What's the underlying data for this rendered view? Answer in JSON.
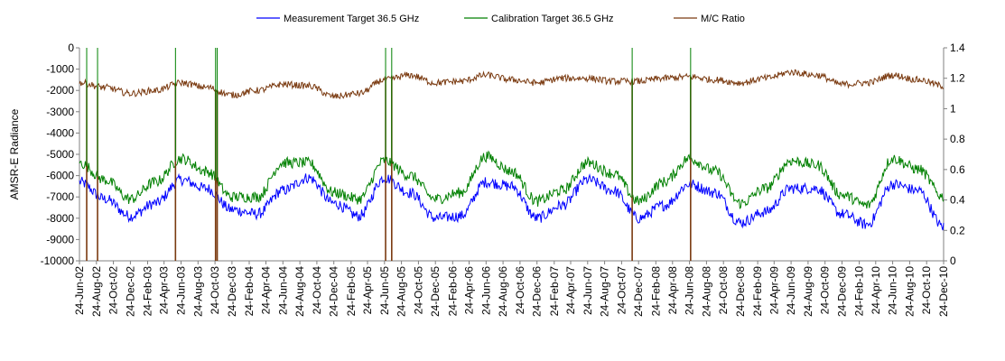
{
  "chart_data": {
    "type": "line",
    "title": "",
    "xlabel": "",
    "ylabel": "AMSR-E Radiance",
    "y2label": "",
    "ylim": [
      -10000,
      0
    ],
    "y2lim": [
      0,
      1.4
    ],
    "y_ticks": [
      "0",
      "-1000",
      "-2000",
      "-3000",
      "-4000",
      "-5000",
      "-6000",
      "-7000",
      "-8000",
      "-9000",
      "-10000"
    ],
    "y2_ticks": [
      "1.4",
      "1.2",
      "1",
      "0.8",
      "0.6",
      "0.4",
      "0.2",
      "0"
    ],
    "grid": false,
    "legend_position": "top-center",
    "x_ticks": [
      "24-Jun-02",
      "24-Aug-02",
      "24-Oct-02",
      "24-Dec-02",
      "24-Feb-03",
      "24-Apr-03",
      "24-Jun-03",
      "24-Aug-03",
      "24-Oct-03",
      "24-Dec-03",
      "24-Feb-04",
      "24-Apr-04",
      "24-Jun-04",
      "24-Aug-04",
      "24-Oct-04",
      "24-Dec-04",
      "24-Feb-05",
      "24-Apr-05",
      "24-Jun-05",
      "24-Aug-05",
      "24-Oct-05",
      "24-Dec-05",
      "24-Feb-06",
      "24-Apr-06",
      "24-Jun-06",
      "24-Aug-06",
      "24-Oct-06",
      "24-Dec-06",
      "24-Feb-07",
      "24-Apr-07",
      "24-Jun-07",
      "24-Aug-07",
      "24-Oct-07",
      "24-Dec-07",
      "24-Feb-08",
      "24-Apr-08",
      "24-Jun-08",
      "24-Aug-08",
      "24-Oct-08",
      "24-Dec-08",
      "24-Feb-09",
      "24-Apr-09",
      "24-Jun-09",
      "24-Aug-09",
      "24-Oct-09",
      "24-Dec-09",
      "24-Feb-10",
      "24-Apr-10",
      "24-Jun-10",
      "24-Aug-10",
      "24-Oct-10",
      "24-Dec-10"
    ],
    "x_start": "2002-06-24",
    "x_end": "2010-12-24",
    "series": [
      {
        "name": "Measurement Target 36.5 GHz",
        "axis": "left",
        "color": "#0000ff",
        "x": [
          "2002-06-24",
          "2002-09-24",
          "2002-12-24",
          "2003-03-24",
          "2003-06-24",
          "2003-09-24",
          "2003-12-24",
          "2004-03-24",
          "2004-06-24",
          "2004-09-24",
          "2004-12-24",
          "2005-03-24",
          "2005-06-24",
          "2005-09-24",
          "2005-12-24",
          "2006-03-24",
          "2006-06-24",
          "2006-09-24",
          "2006-12-24",
          "2007-03-24",
          "2007-06-24",
          "2007-09-24",
          "2007-12-24",
          "2008-03-24",
          "2008-06-24",
          "2008-09-24",
          "2008-12-24",
          "2009-03-24",
          "2009-06-24",
          "2009-09-24",
          "2009-12-24",
          "2010-03-24",
          "2010-06-24",
          "2010-09-24",
          "2010-12-24"
        ],
        "y": [
          -6300,
          -7100,
          -7900,
          -7300,
          -6200,
          -6600,
          -7600,
          -7800,
          -6700,
          -6100,
          -7300,
          -7900,
          -6100,
          -6800,
          -8000,
          -7900,
          -6300,
          -6500,
          -8000,
          -7400,
          -6200,
          -6700,
          -8000,
          -7400,
          -6400,
          -6800,
          -8200,
          -7700,
          -6600,
          -6600,
          -7800,
          -8300,
          -6400,
          -6700,
          -8400
        ]
      },
      {
        "name": "Calibration Target 36.5 GHz",
        "axis": "left",
        "color": "#008000",
        "x": [
          "2002-06-24",
          "2002-09-24",
          "2002-12-24",
          "2003-03-24",
          "2003-06-24",
          "2003-09-24",
          "2003-12-24",
          "2004-03-24",
          "2004-06-24",
          "2004-09-24",
          "2004-12-24",
          "2005-03-24",
          "2005-06-24",
          "2005-09-24",
          "2005-12-24",
          "2006-03-24",
          "2006-06-24",
          "2006-09-24",
          "2006-12-24",
          "2007-03-24",
          "2007-06-24",
          "2007-09-24",
          "2007-12-24",
          "2008-03-24",
          "2008-06-24",
          "2008-09-24",
          "2008-12-24",
          "2009-03-24",
          "2009-06-24",
          "2009-09-24",
          "2009-12-24",
          "2010-03-24",
          "2010-06-24",
          "2010-09-24",
          "2010-12-24"
        ],
        "y": [
          -5400,
          -6200,
          -7100,
          -6300,
          -5200,
          -5800,
          -7000,
          -7000,
          -5400,
          -5400,
          -6800,
          -7100,
          -5300,
          -6000,
          -7100,
          -6800,
          -5100,
          -5800,
          -7200,
          -6700,
          -5400,
          -5900,
          -7200,
          -6300,
          -5200,
          -5800,
          -7300,
          -6600,
          -5300,
          -5500,
          -6900,
          -7400,
          -5200,
          -5700,
          -7000
        ]
      },
      {
        "name": "M/C Ratio",
        "axis": "right",
        "color": "#7a3a10",
        "x": [
          "2002-06-24",
          "2002-09-24",
          "2002-12-24",
          "2003-03-24",
          "2003-06-24",
          "2003-09-24",
          "2003-12-24",
          "2004-03-24",
          "2004-06-24",
          "2004-09-24",
          "2004-12-24",
          "2005-03-24",
          "2005-06-24",
          "2005-09-24",
          "2005-12-24",
          "2006-03-24",
          "2006-06-24",
          "2006-09-24",
          "2006-12-24",
          "2007-03-24",
          "2007-06-24",
          "2007-09-24",
          "2007-12-24",
          "2008-03-24",
          "2008-06-24",
          "2008-09-24",
          "2008-12-24",
          "2009-03-24",
          "2009-06-24",
          "2009-09-24",
          "2009-12-24",
          "2010-03-24",
          "2010-06-24",
          "2010-09-24",
          "2010-12-24"
        ],
        "y": [
          1.17,
          1.14,
          1.1,
          1.12,
          1.17,
          1.14,
          1.09,
          1.12,
          1.16,
          1.15,
          1.08,
          1.1,
          1.19,
          1.22,
          1.17,
          1.18,
          1.22,
          1.19,
          1.17,
          1.2,
          1.2,
          1.18,
          1.18,
          1.2,
          1.21,
          1.19,
          1.17,
          1.2,
          1.24,
          1.22,
          1.16,
          1.17,
          1.22,
          1.19,
          1.15
        ]
      }
    ],
    "drops": [
      {
        "x": "2002-07-20",
        "series": "M/C Ratio",
        "to": 0
      },
      {
        "x": "2002-08-28",
        "series": "M/C Ratio",
        "to": 0
      },
      {
        "x": "2003-06-04",
        "series": "M/C Ratio",
        "to": 0
      },
      {
        "x": "2003-10-26",
        "series": "M/C Ratio",
        "to": 0
      },
      {
        "x": "2003-11-01",
        "series": "M/C Ratio",
        "to": 0
      },
      {
        "x": "2005-06-28",
        "series": "M/C Ratio",
        "to": 0
      },
      {
        "x": "2005-07-20",
        "series": "M/C Ratio",
        "to": 0
      },
      {
        "x": "2007-12-01",
        "series": "M/C Ratio",
        "to": 0
      },
      {
        "x": "2008-06-28",
        "series": "M/C Ratio",
        "to": 0
      }
    ]
  }
}
